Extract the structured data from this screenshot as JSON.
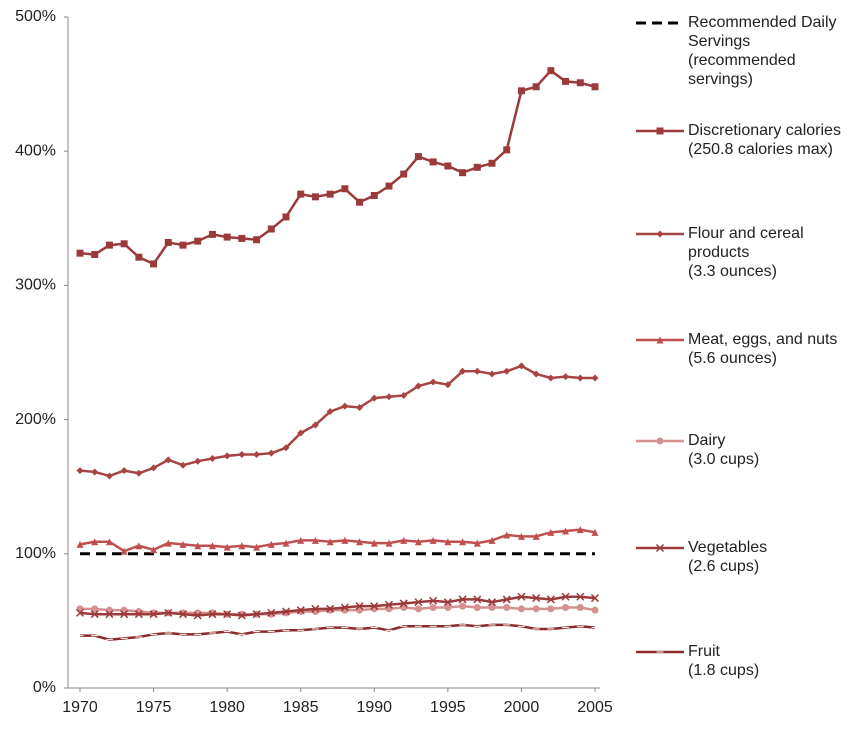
{
  "chart_data": {
    "type": "line",
    "x": [
      1970,
      1971,
      1972,
      1973,
      1974,
      1975,
      1976,
      1977,
      1978,
      1979,
      1980,
      1981,
      1982,
      1983,
      1984,
      1985,
      1986,
      1987,
      1988,
      1989,
      1990,
      1991,
      1992,
      1993,
      1994,
      1995,
      1996,
      1997,
      1998,
      1999,
      2000,
      2001,
      2002,
      2003,
      2004,
      2005
    ],
    "xlim": [
      1970,
      2005
    ],
    "xticks": [
      1970,
      1975,
      1980,
      1985,
      1990,
      1995,
      2000,
      2005
    ],
    "ylim": [
      0,
      500
    ],
    "yticks": [
      {
        "value": 0,
        "label": "0%"
      },
      {
        "value": 100,
        "label": "100%"
      },
      {
        "value": 200,
        "label": "200%"
      },
      {
        "value": 300,
        "label": "300%"
      },
      {
        "value": 400,
        "label": "400%"
      },
      {
        "value": 500,
        "label": "500%"
      }
    ],
    "series": [
      {
        "name": "Recommended Daily Servings\n(recommended servings)",
        "color": "#000000",
        "style": "dashed",
        "marker": "none",
        "values": [
          100,
          100,
          100,
          100,
          100,
          100,
          100,
          100,
          100,
          100,
          100,
          100,
          100,
          100,
          100,
          100,
          100,
          100,
          100,
          100,
          100,
          100,
          100,
          100,
          100,
          100,
          100,
          100,
          100,
          100,
          100,
          100,
          100,
          100,
          100,
          100
        ]
      },
      {
        "name": "Discretionary calories\n(250.8 calories max)",
        "color": "#9b3a3a",
        "style": "solid",
        "marker": "square",
        "values": [
          324,
          323,
          330,
          331,
          321,
          316,
          332,
          330,
          333,
          338,
          336,
          335,
          334,
          342,
          351,
          368,
          366,
          368,
          372,
          362,
          367,
          374,
          383,
          396,
          392,
          389,
          384,
          388,
          391,
          401,
          445,
          448,
          460,
          452,
          451,
          448
        ]
      },
      {
        "name": "Flour and cereal products\n(3.3 ounces)",
        "color": "#a84444",
        "style": "solid",
        "marker": "diamond",
        "values": [
          162,
          161,
          158,
          162,
          160,
          164,
          170,
          166,
          169,
          171,
          173,
          174,
          174,
          175,
          179,
          190,
          196,
          206,
          210,
          209,
          216,
          217,
          218,
          225,
          228,
          226,
          236,
          236,
          234,
          236,
          240,
          234,
          231,
          232,
          231,
          231
        ]
      },
      {
        "name": "Meat, eggs, and nuts\n(5.6 ounces)",
        "color": "#c05050",
        "style": "solid",
        "marker": "triangle",
        "values": [
          107,
          109,
          109,
          102,
          106,
          103,
          108,
          107,
          106,
          106,
          105,
          106,
          105,
          107,
          108,
          110,
          110,
          109,
          110,
          109,
          108,
          108,
          110,
          109,
          110,
          109,
          109,
          108,
          110,
          114,
          113,
          113,
          116,
          117,
          118,
          116
        ]
      },
      {
        "name": "Dairy\n(3.0 cups)",
        "color": "#d79090",
        "style": "solid",
        "marker": "circle",
        "values": [
          59,
          59,
          58,
          58,
          57,
          56,
          56,
          56,
          56,
          56,
          55,
          55,
          55,
          55,
          56,
          57,
          57,
          58,
          58,
          58,
          59,
          59,
          60,
          59,
          60,
          60,
          61,
          60,
          60,
          60,
          59,
          59,
          59,
          60,
          60,
          58
        ]
      },
      {
        "name": "Vegetables\n(2.6 cups)",
        "color": "#9b3a3a",
        "style": "solid",
        "marker": "x",
        "values": [
          56,
          55,
          55,
          55,
          55,
          55,
          56,
          55,
          54,
          55,
          55,
          54,
          55,
          56,
          57,
          58,
          59,
          59,
          60,
          61,
          61,
          62,
          63,
          64,
          65,
          64,
          66,
          66,
          64,
          66,
          68,
          67,
          66,
          68,
          68,
          67
        ]
      },
      {
        "name": "Fruit\n(1.8 cups)",
        "color": "#8b2a2a",
        "style": "solid",
        "marker": "dash",
        "values": [
          39,
          39,
          36,
          37,
          38,
          40,
          41,
          40,
          40,
          41,
          42,
          40,
          42,
          42,
          43,
          43,
          44,
          45,
          45,
          44,
          45,
          43,
          46,
          46,
          46,
          46,
          47,
          46,
          47,
          47,
          46,
          44,
          44,
          45,
          46,
          45
        ]
      }
    ]
  }
}
